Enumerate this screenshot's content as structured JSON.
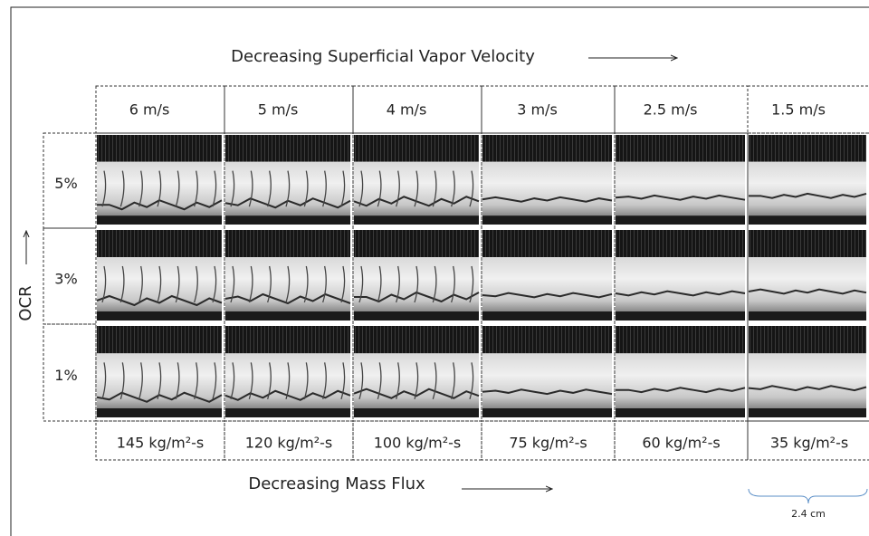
{
  "top_label": "Decreasing Superficial Vapor Velocity",
  "velocities": [
    "6 m/s",
    "5 m/s",
    "4 m/s",
    "3 m/s",
    "2.5 m/s",
    "1.5 m/s"
  ],
  "side_label": "OCR",
  "ocr": [
    "5%",
    "3%",
    "1%"
  ],
  "mass_fluxes": [
    "145 kg/m²-s",
    "120 kg/m²-s",
    "100 kg/m²-s",
    "75 kg/m²-s",
    "60 kg/m²-s",
    "35 kg/m²-s"
  ],
  "bottom_label": "Decreasing Mass Flux",
  "scale_label": "2.4 cm"
}
